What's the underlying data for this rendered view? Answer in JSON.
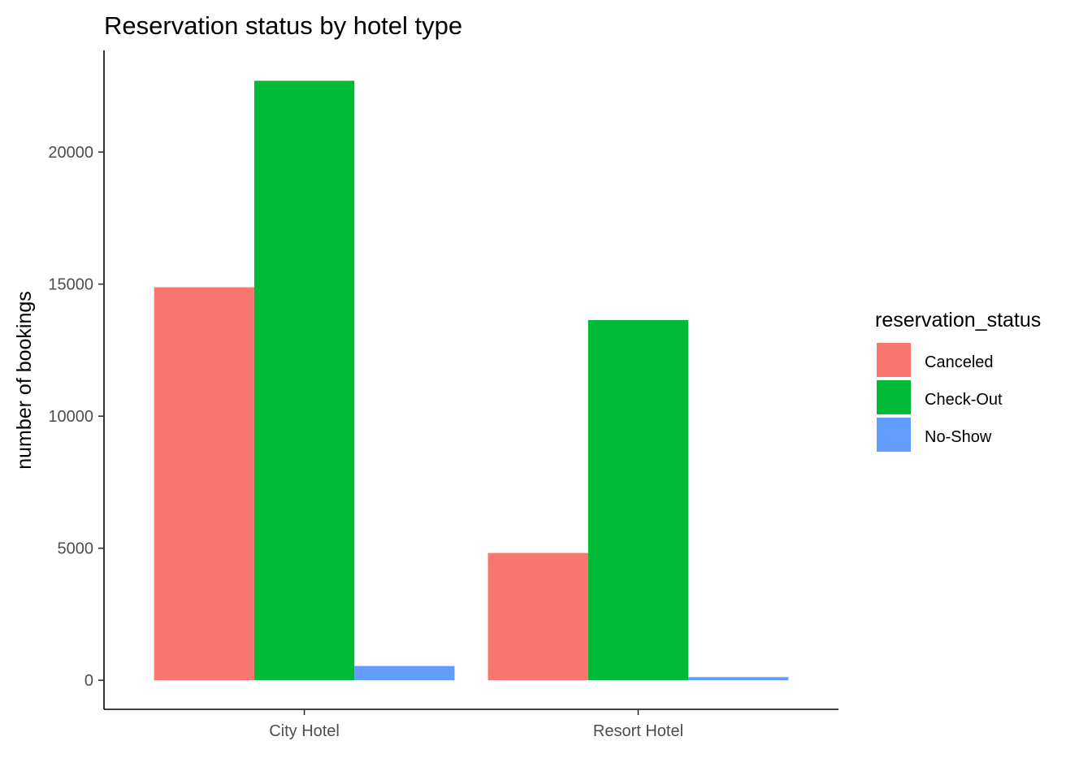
{
  "chart_data": {
    "type": "bar",
    "title": "Reservation status by hotel type",
    "xlabel": "",
    "ylabel": "number of bookings",
    "categories": [
      "City Hotel",
      "Resort Hotel"
    ],
    "series": [
      {
        "name": "Canceled",
        "color": "#F8766D",
        "values": [
          14880,
          4820
        ]
      },
      {
        "name": "Check-Out",
        "color": "#00BA38",
        "values": [
          22700,
          13640
        ]
      },
      {
        "name": "No-Show",
        "color": "#619CFF",
        "values": [
          540,
          120
        ]
      }
    ],
    "yticks": [
      0,
      5000,
      10000,
      15000,
      20000
    ],
    "ytick_labels": [
      "0",
      "5000",
      "10000",
      "15000",
      "20000"
    ],
    "ylim": [
      -1100,
      23850
    ],
    "grid": false,
    "legend": {
      "title": "reservation_status",
      "position": "right"
    }
  }
}
